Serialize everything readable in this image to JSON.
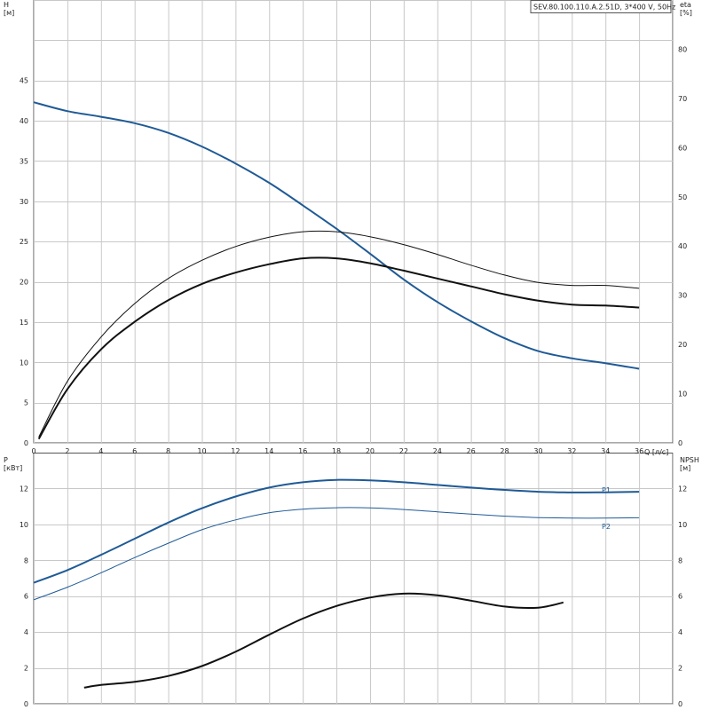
{
  "product_label": "SEV.80.100.110.A.2.51D, 3*400 V, 50Hz",
  "colors": {
    "blue": "#1f5a96",
    "black": "#111111",
    "grid": "#c8c8c8",
    "axis": "#555555"
  },
  "chart_data": [
    {
      "type": "line",
      "title": "",
      "x_axis": {
        "label": "Q [л/с]",
        "ticks": [
          0,
          2,
          4,
          6,
          8,
          10,
          12,
          14,
          16,
          18,
          20,
          22,
          24,
          26,
          28,
          30,
          32,
          34,
          36
        ],
        "range": [
          0,
          38
        ]
      },
      "y_left": {
        "label": "H",
        "unit": "[м]",
        "ticks": [
          0,
          5,
          10,
          15,
          20,
          25,
          30,
          35,
          40,
          45
        ],
        "range": [
          0,
          55
        ]
      },
      "y_right": {
        "label": "eta",
        "unit": "[%]",
        "ticks": [
          0,
          10,
          20,
          30,
          40,
          50,
          60,
          70,
          80
        ],
        "range": [
          0,
          90
        ]
      },
      "series": [
        {
          "name": "",
          "axis": "left",
          "style": "blue-thick",
          "x": [
            0,
            2,
            4,
            6,
            8,
            10,
            12,
            14,
            16,
            18,
            20,
            22,
            24,
            26,
            28,
            30,
            32,
            34,
            36
          ],
          "y": [
            42.3,
            41.2,
            40.5,
            39.7,
            38.5,
            36.8,
            34.7,
            32.3,
            29.5,
            26.6,
            23.5,
            20.3,
            17.5,
            15.1,
            13.0,
            11.4,
            10.5,
            9.9,
            9.2
          ]
        },
        {
          "name": "",
          "axis": "right",
          "style": "black-thin",
          "x": [
            0.3,
            2,
            4,
            6,
            8,
            10,
            12,
            14,
            16,
            18,
            20,
            22,
            24,
            26,
            28,
            30,
            32,
            34,
            36
          ],
          "y": [
            1.2,
            12.5,
            21.5,
            28.3,
            33.4,
            37.1,
            39.9,
            41.8,
            42.9,
            42.9,
            41.9,
            40.3,
            38.3,
            36.1,
            34.1,
            32.6,
            32.0,
            32.0,
            31.4
          ]
        },
        {
          "name": "",
          "axis": "right",
          "style": "black-thick",
          "x": [
            0.3,
            2,
            4,
            6,
            8,
            10,
            12,
            14,
            16,
            18,
            20,
            22,
            24,
            26,
            28,
            30,
            32,
            34,
            36
          ],
          "y": [
            0.8,
            10.9,
            19.0,
            24.6,
            29.0,
            32.3,
            34.6,
            36.3,
            37.5,
            37.5,
            36.5,
            35.0,
            33.4,
            31.8,
            30.2,
            28.9,
            28.1,
            27.9,
            27.5
          ]
        }
      ]
    },
    {
      "type": "line",
      "title": "",
      "x_axis": {
        "ticks": [
          0,
          2,
          4,
          6,
          8,
          10,
          12,
          14,
          16,
          18,
          20,
          22,
          24,
          26,
          28,
          30,
          32,
          34,
          36
        ],
        "range": [
          0,
          38
        ]
      },
      "y_left": {
        "label": "P",
        "unit": "[кВт]",
        "ticks": [
          0,
          2,
          4,
          6,
          8,
          10,
          12
        ],
        "range": [
          0,
          14
        ]
      },
      "y_right": {
        "label": "NPSH",
        "unit": "[м]",
        "ticks": [
          0,
          2,
          4,
          6,
          8,
          10,
          12
        ],
        "range": [
          0,
          14
        ]
      },
      "series": [
        {
          "name": "P1",
          "axis": "left",
          "style": "blue-thick",
          "x": [
            0,
            2,
            4,
            6,
            8,
            10,
            12,
            14,
            16,
            18,
            20,
            22,
            24,
            26,
            28,
            30,
            32,
            34,
            36
          ],
          "y": [
            6.75,
            7.45,
            8.3,
            9.2,
            10.1,
            10.9,
            11.55,
            12.05,
            12.35,
            12.48,
            12.45,
            12.35,
            12.2,
            12.05,
            11.92,
            11.82,
            11.78,
            11.79,
            11.82
          ]
        },
        {
          "name": "P2",
          "axis": "left",
          "style": "blue-thin",
          "x": [
            0,
            2,
            4,
            6,
            8,
            10,
            12,
            14,
            16,
            18,
            20,
            22,
            24,
            26,
            28,
            30,
            32,
            34,
            36
          ],
          "y": [
            5.8,
            6.5,
            7.3,
            8.15,
            8.95,
            9.7,
            10.25,
            10.65,
            10.85,
            10.93,
            10.92,
            10.83,
            10.7,
            10.57,
            10.46,
            10.38,
            10.35,
            10.35,
            10.37
          ]
        },
        {
          "name": "",
          "axis": "right",
          "style": "black-thick",
          "x": [
            3,
            4,
            6,
            8,
            10,
            12,
            14,
            16,
            18,
            20,
            22,
            24,
            26,
            28,
            30,
            31.5
          ],
          "y": [
            0.9,
            1.05,
            1.22,
            1.55,
            2.1,
            2.9,
            3.85,
            4.75,
            5.45,
            5.92,
            6.14,
            6.05,
            5.75,
            5.42,
            5.36,
            5.65
          ]
        }
      ]
    }
  ]
}
